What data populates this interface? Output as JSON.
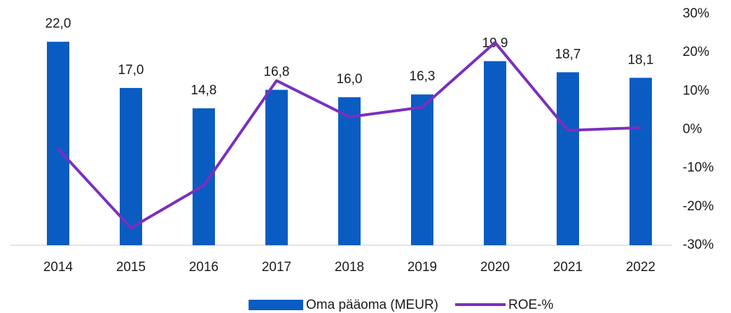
{
  "chart_data": {
    "type": "bar_line",
    "categories": [
      "2014",
      "2015",
      "2016",
      "2017",
      "2018",
      "2019",
      "2020",
      "2021",
      "2022"
    ],
    "series": [
      {
        "name": "Oma pääoma (MEUR)",
        "color": "#0a5cc2",
        "type": "bar",
        "values": [
          22.0,
          17.0,
          14.8,
          16.8,
          16.0,
          16.3,
          19.9,
          18.7,
          18.1
        ],
        "value_labels": [
          "22,0",
          "17,0",
          "14,8",
          "16,8",
          "16,0",
          "16,3",
          "19,9",
          "18,7",
          "18,1"
        ]
      },
      {
        "name": "ROE-%",
        "color": "#7b2fbe",
        "type": "line",
        "axis": "y2",
        "values": [
          -5,
          -25.5,
          -14.5,
          12.7,
          3.3,
          5.8,
          22.6,
          -0.2,
          0.5
        ]
      }
    ],
    "ylim": [
      0,
      25
    ],
    "y2lim": [
      -30,
      30
    ],
    "y2ticks": [
      {
        "value": -30,
        "label": "-30%"
      },
      {
        "value": -20,
        "label": "-20%"
      },
      {
        "value": -10,
        "label": "-10%"
      },
      {
        "value": 0,
        "label": "0%"
      },
      {
        "value": 10,
        "label": "10%"
      },
      {
        "value": 20,
        "label": "20%"
      },
      {
        "value": 30,
        "label": "30%"
      }
    ]
  }
}
